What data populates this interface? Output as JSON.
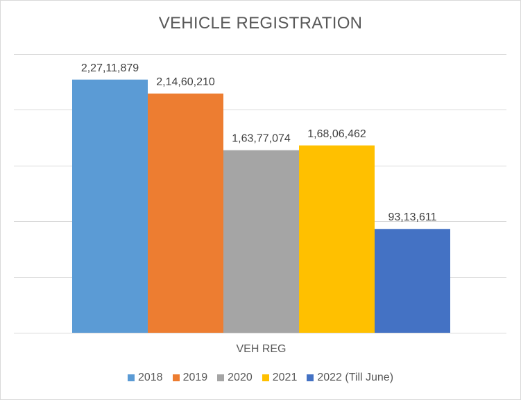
{
  "chart_data": {
    "type": "bar",
    "title": "VEHICLE REGISTRATION",
    "categories": [
      "VEH REG"
    ],
    "series": [
      {
        "name": "2018",
        "values": [
          22711879
        ],
        "label": "2,27,11,879",
        "color": "#5b9bd5"
      },
      {
        "name": "2019",
        "values": [
          21460210
        ],
        "label": "2,14,60,210",
        "color": "#ed7d31"
      },
      {
        "name": "2020",
        "values": [
          16377074
        ],
        "label": "1,63,77,074",
        "color": "#a5a5a5"
      },
      {
        "name": "2021",
        "values": [
          16806462
        ],
        "label": "1,68,06,462",
        "color": "#ffc000"
      },
      {
        "name": "2022 (Till June)",
        "values": [
          9313611
        ],
        "label": "93,13,611",
        "color": "#4472c4"
      }
    ],
    "xlabel": "VEH REG",
    "ylabel": "",
    "ylim": [
      0,
      25000000
    ],
    "y_major_unit": 5000000,
    "grid": true,
    "legend_position": "bottom",
    "data_labels": true
  }
}
